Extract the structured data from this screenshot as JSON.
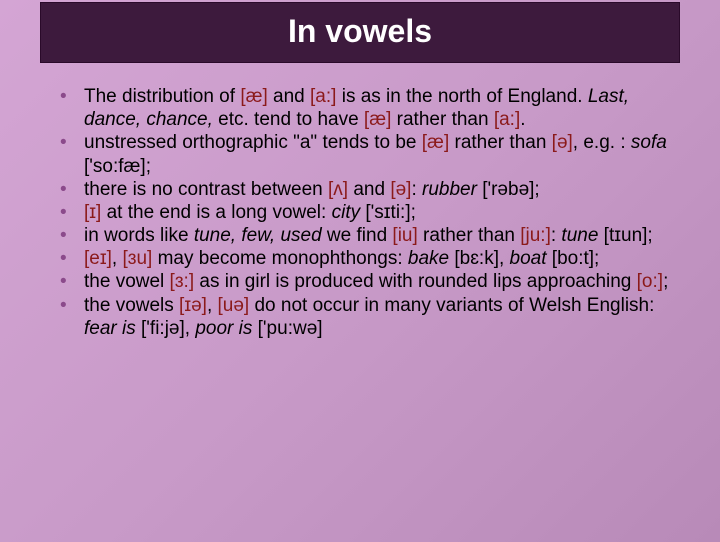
{
  "title": "In vowels",
  "colors": {
    "title_bg": "#3d1a3d",
    "title_text": "#ffffff",
    "body_text": "#000000",
    "ipa_text": "#8b1a1a",
    "bullet_color": "#8b4a8b",
    "background_gradient": [
      "#d4a5d4",
      "#c89ac8",
      "#b88ab8"
    ]
  },
  "typography": {
    "title_fontsize": 32,
    "body_fontsize": 19,
    "font_family": "Arial"
  },
  "bullets": [
    {
      "t1": "The distribution of ",
      "ipa1": "[æ]",
      "t2": " and ",
      "ipa2": "[a:]",
      "t3": " is as in the north of England. ",
      "em1": "Last, dance, chance,",
      "t4": " etc. tend to have ",
      "ipa3": "[æ]",
      "t5": " rather than ",
      "ipa4": "[a:]",
      "t6": "."
    },
    {
      "t1": "unstressed orthographic \"a\" tends to be ",
      "ipa1": "[æ]",
      "t2": " rather than ",
      "ipa2": "[ə]",
      "t3": ", e.g. : ",
      "em1": "sofa",
      "t4": " ['so:fæ];"
    },
    {
      "t1": "there is no contrast between ",
      "ipa1": "[ʌ]",
      "t2": " and ",
      "ipa2": "[ə]",
      "t3": ": ",
      "em1": "rubber",
      "t4": " ['rəbə];"
    },
    {
      "ipa1": "[ɪ]",
      "t1": " at the end is a long vowel: ",
      "em1": "city",
      "t2": " ['sɪti:];"
    },
    {
      "t1": "in words like ",
      "em1": "tune, few, used",
      "t2": " we find ",
      "ipa1": "[iu]",
      "t3": " rather than ",
      "ipa2": "[ju:]",
      "t4": ": ",
      "em2": "tune",
      "t5": " [tɪun];"
    },
    {
      "ipa1": "[eɪ]",
      "t1": ", ",
      "ipa2": "[ɜu]",
      "t2": " may become monophthongs: ",
      "em1": "bake",
      "t3": " [bɛ:k], ",
      "em2": "boat",
      "t4": " [bo:t];"
    },
    {
      "t1": "the vowel ",
      "ipa1": "[ɜ:]",
      "t2": " as in girl is produced with rounded lips approaching ",
      "ipa2": "[o:]",
      "t3": ";"
    },
    {
      "t1": "the vowels ",
      "ipa1": "[ɪə]",
      "t2": ", ",
      "ipa2": "[uə]",
      "t3": " do not occur in many variants of Welsh English: ",
      "em1": "fear is",
      "t4": " ['fi:jə], ",
      "em2": "poor is",
      "t5": " ['pu:wə]"
    }
  ]
}
